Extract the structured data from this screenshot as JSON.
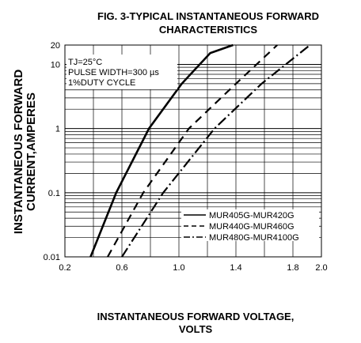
{
  "chart_data": {
    "type": "line",
    "title_line1": "FIG. 3-TYPICAL INSTANTANEOUS FORWARD",
    "title_line2": "CHARACTERISTICS",
    "xlabel_line1": "INSTANTANEOUS FORWARD VOLTAGE,",
    "xlabel_line2": "VOLTS",
    "ylabel_line1": "INSTANTANEOUS FORWARD",
    "ylabel_line2": "CURRENT,AMPERES",
    "x_scale": "linear",
    "y_scale": "log",
    "xlim": [
      0.2,
      2.0
    ],
    "ylim": [
      0.01,
      20
    ],
    "x_ticks": [
      0.2,
      0.6,
      1.0,
      1.4,
      1.8,
      2.0
    ],
    "x_tick_labels": [
      "0.2",
      "0.6",
      "1.0",
      "1.4",
      "1.8",
      "2.0"
    ],
    "y_ticks": [
      0.01,
      0.1,
      1,
      10,
      20
    ],
    "y_tick_labels": [
      "0.01",
      "0.1",
      "1",
      "10",
      "20"
    ],
    "grid": true,
    "legend_position": "bottom-right",
    "conditions": [
      "TJ=25°C",
      "PULSE WIDTH=300 µs",
      "1%DUTY CYCLE"
    ],
    "series": [
      {
        "name": "MUR405G-MUR420G",
        "style": "solid",
        "x": [
          0.38,
          0.56,
          0.79,
          1.02,
          1.22,
          1.38
        ],
        "y": [
          0.01,
          0.1,
          1,
          5,
          15,
          20
        ]
      },
      {
        "name": "MUR440G-MUR460G",
        "style": "dashed",
        "x": [
          0.5,
          0.75,
          1.07,
          1.4,
          1.69
        ],
        "y": [
          0.01,
          0.1,
          1,
          5,
          20
        ]
      },
      {
        "name": "MUR480G-MUR4100G",
        "style": "dashdot",
        "x": [
          0.6,
          0.89,
          1.25,
          1.58,
          1.92
        ],
        "y": [
          0.01,
          0.1,
          1,
          5,
          20
        ]
      }
    ]
  }
}
